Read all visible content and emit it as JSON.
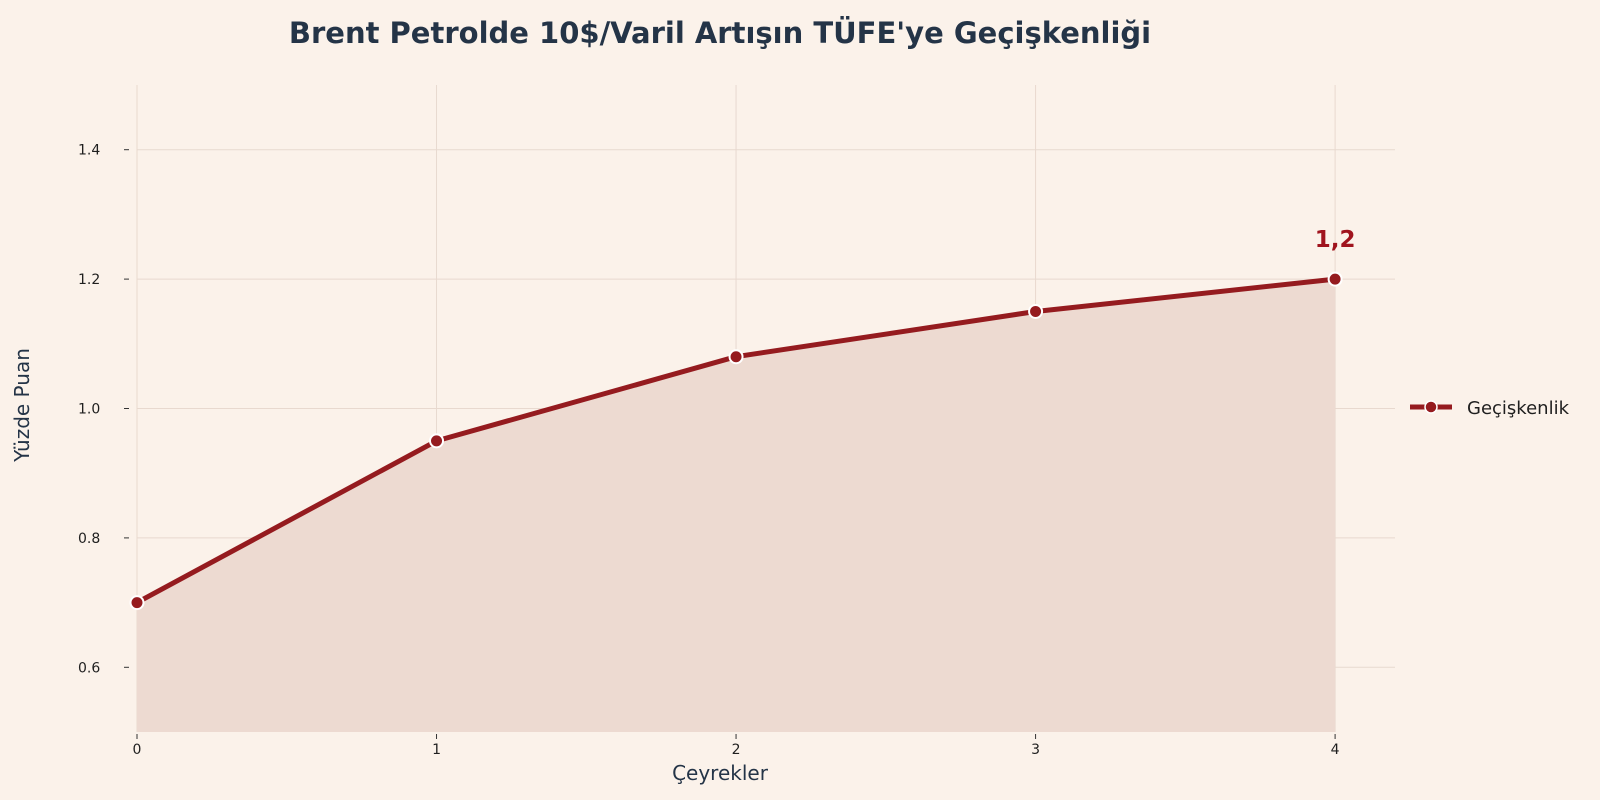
{
  "chart_data": {
    "type": "area",
    "title": "Brent Petrolde 10$/Varil Artışın TÜFE'ye Geçişkenliği",
    "xlabel": "Çeyrekler",
    "ylabel": "Yüzde Puan",
    "x": [
      0,
      1,
      2,
      3,
      4
    ],
    "x_ticks": [
      "0",
      "1",
      "2",
      "3",
      "4"
    ],
    "y_ticks": [
      "0.6",
      "0.8",
      "1.0",
      "1.2",
      "1.4"
    ],
    "ylim": [
      0.5,
      1.5
    ],
    "xlim": [
      0,
      4.2
    ],
    "grid": true,
    "legend": {
      "placement": "right",
      "entries": [
        "Geçişkenlik"
      ]
    },
    "series": [
      {
        "name": "Geçişkenlik",
        "values": [
          0.7,
          0.95,
          1.08,
          1.15,
          1.2
        ],
        "color": "#951b1f"
      }
    ],
    "annotations": [
      {
        "x": 4,
        "y": 1.2,
        "text": "1,2"
      }
    ],
    "colors": {
      "line": "#951b1f",
      "fill": "#eddad1",
      "grid": "#e8d9cf",
      "background": "#fbf2ea",
      "annotation": "#a0141e"
    }
  }
}
